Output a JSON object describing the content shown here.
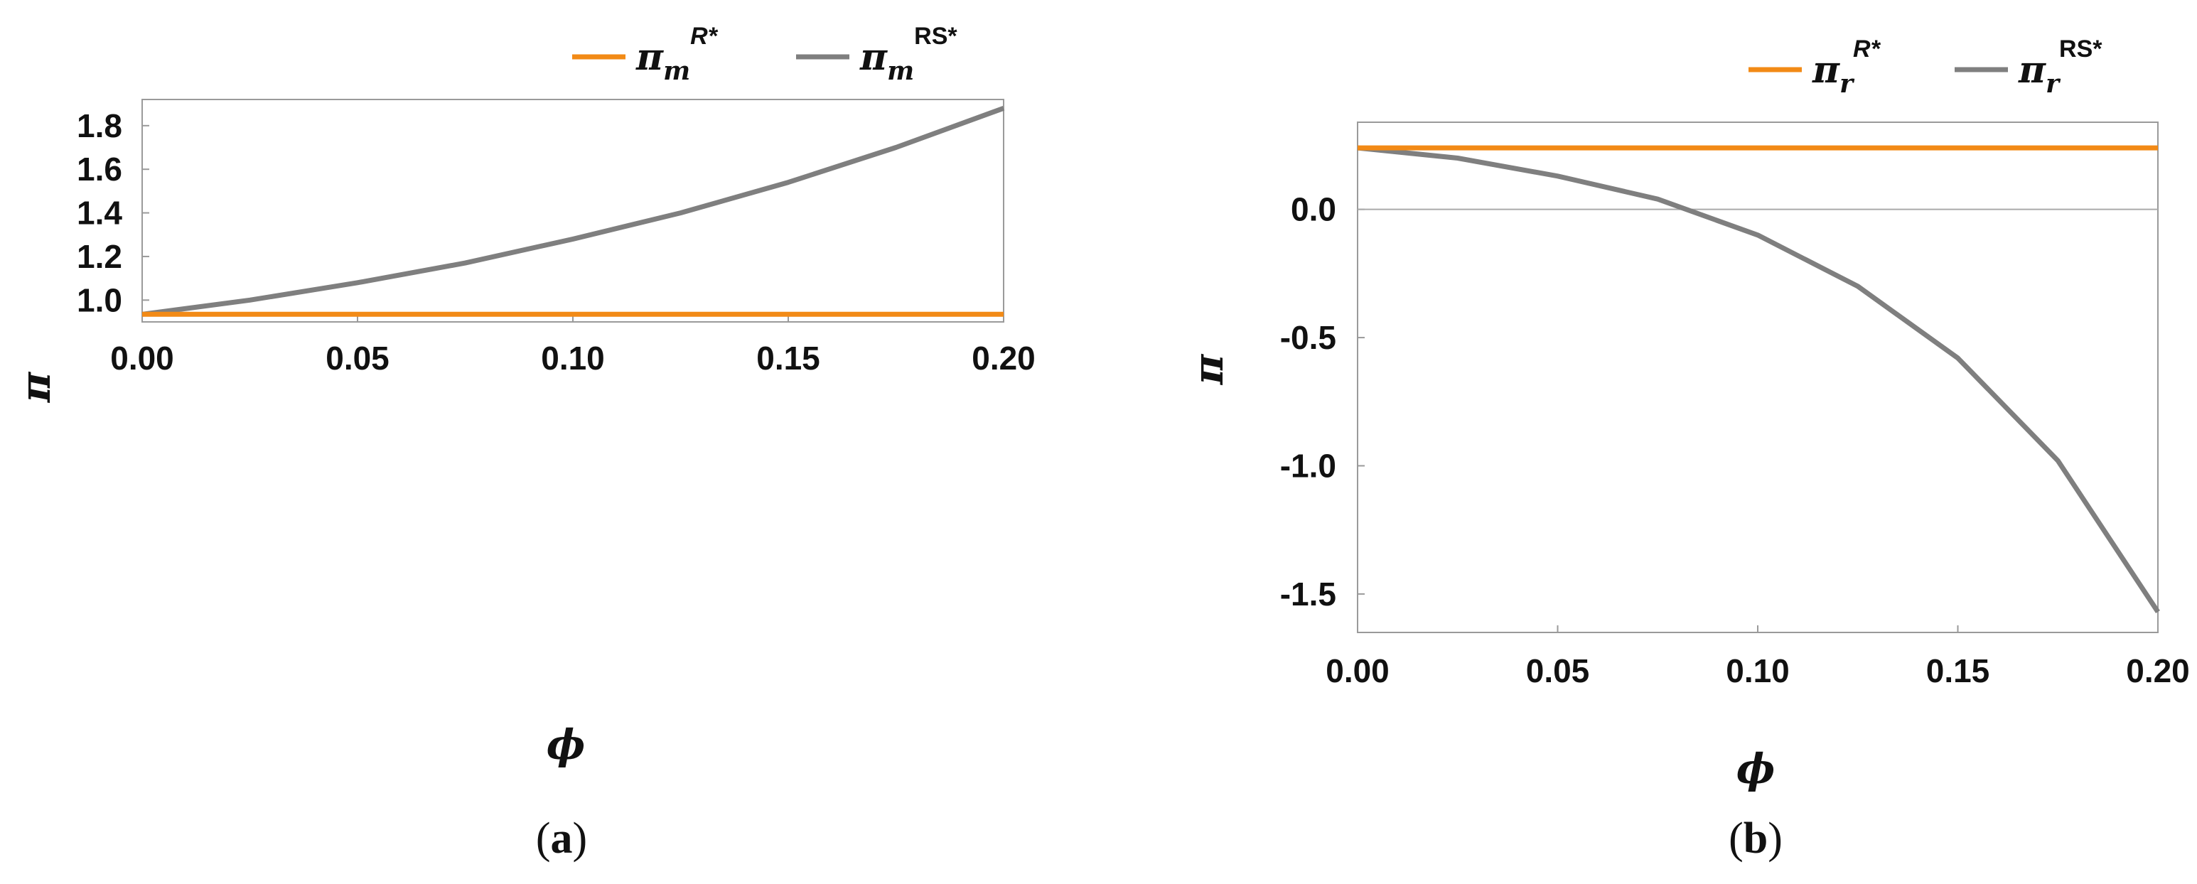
{
  "chart_data": [
    {
      "type": "line",
      "panel_label": "a",
      "xlabel": "ϕ",
      "ylabel": "π",
      "xlim": [
        0,
        0.2
      ],
      "ylim": [
        0.9,
        1.92
      ],
      "x_ticks": [
        "0.00",
        "0.05",
        "0.10",
        "0.15",
        "0.20"
      ],
      "y_ticks": [
        "1.0",
        "1.2",
        "1.4",
        "1.6",
        "1.8"
      ],
      "grid": false,
      "legend_position": "top-right",
      "legend": [
        {
          "base": "π",
          "sub": "m",
          "sup": "R*",
          "sup_italic": true
        },
        {
          "base": "π",
          "sub": "m",
          "sup": "RS*",
          "sup_italic": false
        }
      ],
      "colors": {
        "series1": "#F28A16",
        "series2": "#7F7F7F"
      },
      "series": [
        {
          "x": [
            0,
            0.2
          ],
          "values": [
            0.935,
            0.935
          ]
        },
        {
          "x": [
            0,
            0.025,
            0.05,
            0.075,
            0.1,
            0.125,
            0.15,
            0.175,
            0.2
          ],
          "values": [
            0.935,
            1.0,
            1.08,
            1.17,
            1.28,
            1.4,
            1.54,
            1.7,
            1.88
          ]
        }
      ]
    },
    {
      "type": "line",
      "panel_label": "b",
      "xlabel": "ϕ",
      "ylabel": "π",
      "xlim": [
        0,
        0.2
      ],
      "ylim": [
        -1.65,
        0.34
      ],
      "x_ticks": [
        "0.00",
        "0.05",
        "0.10",
        "0.15",
        "0.20"
      ],
      "y_ticks": [
        "0.0",
        "-0.5",
        "-1.0",
        "-1.5"
      ],
      "grid": false,
      "zero_line": true,
      "legend_position": "top-right",
      "legend": [
        {
          "base": "π",
          "sub": "r",
          "sup": "R*",
          "sup_italic": true
        },
        {
          "base": "π",
          "sub": "r",
          "sup": "RS*",
          "sup_italic": false
        }
      ],
      "colors": {
        "series1": "#F28A16",
        "series2": "#7F7F7F",
        "zero_line": "#AAAAAA"
      },
      "series": [
        {
          "x": [
            0,
            0.2
          ],
          "values": [
            0.24,
            0.24
          ]
        },
        {
          "x": [
            0,
            0.025,
            0.05,
            0.075,
            0.1,
            0.125,
            0.15,
            0.175,
            0.2
          ],
          "values": [
            0.24,
            0.2,
            0.13,
            0.04,
            -0.1,
            -0.3,
            -0.58,
            -0.98,
            -1.57
          ]
        }
      ]
    }
  ]
}
